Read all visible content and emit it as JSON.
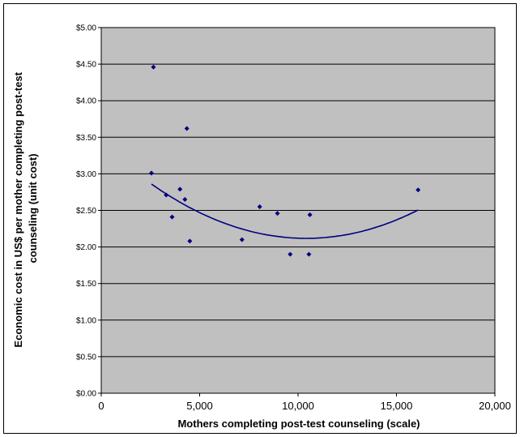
{
  "chart_data": {
    "type": "scatter",
    "title": "",
    "xlabel": "Mothers completing post-test counseling (scale)",
    "ylabel_lines": [
      "Economic cost in US$ per mother completing post-test",
      "counseling (unit cost)"
    ],
    "xlim": [
      0,
      20000
    ],
    "ylim": [
      0,
      5
    ],
    "x_ticks": [
      0,
      5000,
      10000,
      15000,
      20000
    ],
    "x_tick_labels": [
      "0",
      "5,000",
      "10,000",
      "15,000",
      "20,000"
    ],
    "y_ticks": [
      0,
      0.5,
      1,
      1.5,
      2,
      2.5,
      3,
      3.5,
      4,
      4.5,
      5
    ],
    "y_tick_labels": [
      "$0.00",
      "$0.50",
      "$1.00",
      "$1.50",
      "$2.00",
      "$2.50",
      "$3.00",
      "$3.50",
      "$4.00",
      "$4.50",
      "$5.00"
    ],
    "grid": "horizontal",
    "legend": "none",
    "series": [
      {
        "x": [
          2550,
          2650,
          3300,
          3600,
          4000,
          4250,
          4350,
          4500,
          7150,
          8050,
          8950,
          9600,
          10550,
          10600,
          16100
        ],
        "y": [
          3.01,
          4.46,
          2.71,
          2.41,
          2.79,
          2.65,
          3.62,
          2.08,
          2.1,
          2.55,
          2.46,
          1.9,
          1.9,
          2.44,
          2.78
        ],
        "color": "#000080"
      }
    ],
    "trendline": {
      "kind": "polynomial-order-2",
      "x_range": [
        2550,
        16100
      ],
      "coefficients": [
        1.2e-08,
        -0.00025,
        3.42
      ],
      "color": "#000080"
    },
    "colors": {
      "plot_background": "#c0c0c0",
      "gridline": "#000000",
      "marker": "#000080"
    }
  }
}
